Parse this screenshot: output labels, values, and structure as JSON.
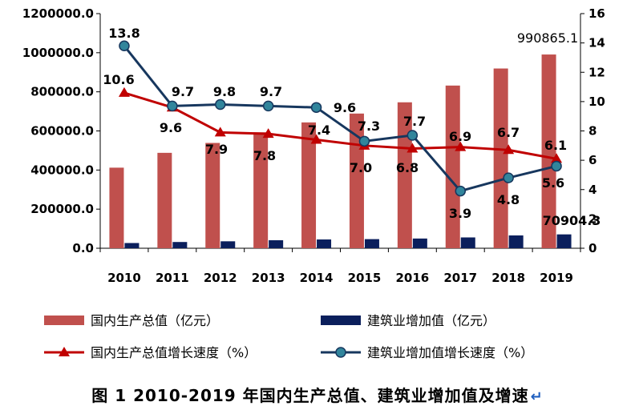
{
  "chart_data": {
    "type": "bar",
    "categories": [
      "2010",
      "2011",
      "2012",
      "2013",
      "2014",
      "2015",
      "2016",
      "2017",
      "2018",
      "2019"
    ],
    "left_axis": {
      "ylim": [
        0,
        1200000
      ],
      "ticks": [
        "0.0",
        "200000.0",
        "400000.0",
        "600000.0",
        "800000.0",
        "1000000.0",
        "1200000.0"
      ]
    },
    "right_axis": {
      "ylim": [
        0,
        16
      ],
      "ticks": [
        "0",
        "2",
        "4",
        "6",
        "8",
        "10",
        "12",
        "14",
        "16"
      ]
    },
    "series": [
      {
        "name": "国内生产总值（亿元）",
        "type": "bar",
        "axis": "left",
        "color": "#c0504d",
        "values": [
          412119,
          487940,
          538580,
          592963,
          643563,
          688858,
          746395,
          832036,
          919281,
          990865.1
        ]
      },
      {
        "name": "建筑业增加值（亿元）",
        "type": "bar",
        "axis": "left",
        "color": "#0b1f5c",
        "values": [
          26661,
          31943,
          35491,
          40897,
          44880,
          46627,
          49703,
          55313,
          65493,
          70904.3
        ]
      },
      {
        "name": "国内生产总值增长速度（%）",
        "type": "line",
        "axis": "right",
        "color": "#c00000",
        "marker": "triangle",
        "values": [
          10.6,
          9.6,
          7.9,
          7.8,
          7.4,
          7.0,
          6.8,
          6.9,
          6.7,
          6.1
        ]
      },
      {
        "name": "建筑业增加值增长速度（%）",
        "type": "line",
        "axis": "right",
        "color": "#17375e",
        "marker": "circle",
        "marker_color": "#31859c",
        "values": [
          13.8,
          9.7,
          9.8,
          9.7,
          9.6,
          7.3,
          7.7,
          3.9,
          4.8,
          5.6
        ]
      }
    ],
    "annotations": [
      {
        "text": "13.8"
      },
      {
        "text": "10.6"
      },
      {
        "text": "9.7"
      },
      {
        "text": "9.8"
      },
      {
        "text": "9.7"
      },
      {
        "text": "9.6"
      },
      {
        "text": "7.9"
      },
      {
        "text": "7.8"
      },
      {
        "text": "7.4"
      },
      {
        "text": "9.6"
      },
      {
        "text": "7.3"
      },
      {
        "text": "7.0"
      },
      {
        "text": "7.7"
      },
      {
        "text": "6.8"
      },
      {
        "text": "6.9"
      },
      {
        "text": "3.9"
      },
      {
        "text": "6.7"
      },
      {
        "text": "4.8"
      },
      {
        "text": "6.1"
      },
      {
        "text": "5.6"
      },
      {
        "text": "990865.1"
      },
      {
        "text": "70904.3"
      }
    ],
    "legend_placement": "bottom",
    "grid": false
  },
  "caption": "图 1   2010-2019 年国内生产总值、建筑业增加值及增速"
}
